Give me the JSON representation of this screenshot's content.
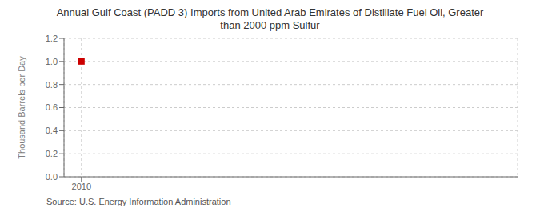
{
  "chart_data": {
    "type": "scatter",
    "title": "Annual Gulf Coast (PADD 3) Imports from United Arab Emirates of Distillate Fuel Oil, Greater\nthan 2000 ppm Sulfur",
    "y_label": "Thousand Barrels per Day",
    "annotations": [
      "Source: U.S. Energy Information Administration"
    ],
    "x": [
      2010
    ],
    "values": [
      1.0
    ],
    "color": "#cc0000",
    "marker": "square",
    "xlim": [
      2009.4,
      2025
    ],
    "xticks": [
      2010
    ],
    "ylim": [
      0.0,
      1.2
    ],
    "yticks": [
      {
        "value": 0,
        "label": "0.0"
      },
      0.2,
      0.4,
      0.6,
      0.8,
      {
        "value": 1,
        "label": "1.0"
      },
      1.2
    ],
    "grid": true
  }
}
